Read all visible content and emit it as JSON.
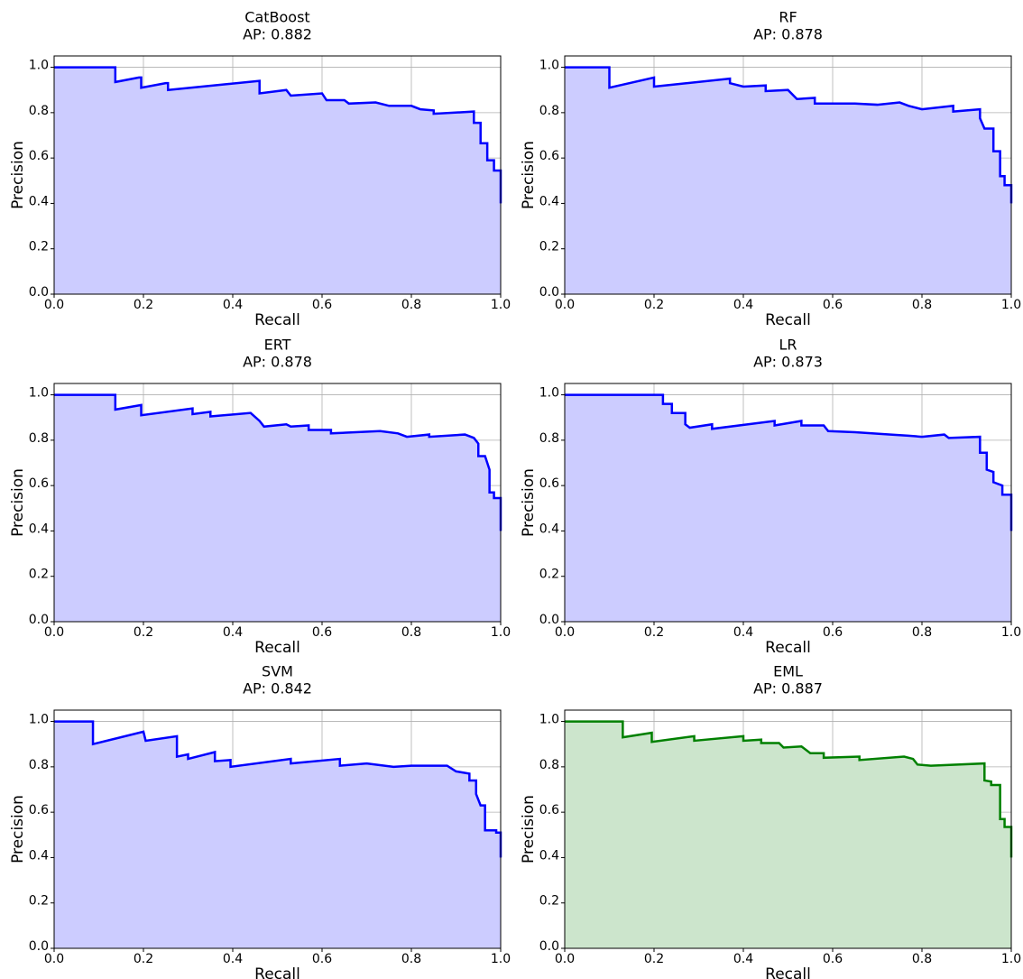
{
  "chart_data": [
    {
      "type": "line",
      "title": "CatBoost",
      "subtitle": "AP: 0.882",
      "xlabel": "Recall",
      "ylabel": "Precision",
      "color": "#0000ff",
      "fill": "#ccccff",
      "grid": true,
      "xlim": [
        0,
        1
      ],
      "ylim": [
        0,
        1.05
      ],
      "xticks": [
        {
          "value": 0,
          "label": "0.0"
        },
        0.2,
        0.4,
        0.6,
        0.8,
        {
          "value": 1,
          "label": "1.0"
        }
      ],
      "yticks": [
        {
          "value": 0,
          "label": "0.0"
        },
        0.2,
        0.4,
        0.6,
        0.8,
        {
          "value": 1,
          "label": "1.0"
        }
      ],
      "x": [
        0,
        0.137,
        0.137,
        0.19,
        0.195,
        0.195,
        0.25,
        0.255,
        0.255,
        0.46,
        0.46,
        0.52,
        0.53,
        0.6,
        0.61,
        0.65,
        0.66,
        0.72,
        0.75,
        0.8,
        0.82,
        0.85,
        0.85,
        0.94,
        0.94,
        0.955,
        0.955,
        0.97,
        0.97,
        0.985,
        0.985,
        1,
        1
      ],
      "y": [
        1,
        1,
        0.935,
        0.955,
        0.955,
        0.91,
        0.93,
        0.93,
        0.9,
        0.94,
        0.885,
        0.9,
        0.875,
        0.885,
        0.855,
        0.855,
        0.84,
        0.845,
        0.83,
        0.83,
        0.815,
        0.81,
        0.795,
        0.805,
        0.755,
        0.755,
        0.665,
        0.665,
        0.59,
        0.59,
        0.545,
        0.545,
        0.4
      ]
    },
    {
      "type": "line",
      "title": "RF",
      "subtitle": "AP: 0.878",
      "xlabel": "Recall",
      "ylabel": "Precision",
      "color": "#0000ff",
      "fill": "#ccccff",
      "grid": true,
      "xlim": [
        0,
        1
      ],
      "ylim": [
        0,
        1.05
      ],
      "xticks": [
        {
          "value": 0,
          "label": "0.0"
        },
        0.2,
        0.4,
        0.6,
        0.8,
        {
          "value": 1,
          "label": "1.0"
        }
      ],
      "yticks": [
        {
          "value": 0,
          "label": "0.0"
        },
        0.2,
        0.4,
        0.6,
        0.8,
        {
          "value": 1,
          "label": "1.0"
        }
      ],
      "x": [
        0,
        0.1,
        0.1,
        0.2,
        0.2,
        0.37,
        0.37,
        0.4,
        0.45,
        0.45,
        0.5,
        0.52,
        0.56,
        0.56,
        0.65,
        0.7,
        0.75,
        0.77,
        0.8,
        0.87,
        0.87,
        0.93,
        0.93,
        0.94,
        0.96,
        0.96,
        0.975,
        0.975,
        0.985,
        0.985,
        1,
        1
      ],
      "y": [
        1,
        1,
        0.91,
        0.955,
        0.915,
        0.95,
        0.93,
        0.915,
        0.92,
        0.895,
        0.9,
        0.86,
        0.865,
        0.84,
        0.84,
        0.835,
        0.845,
        0.83,
        0.815,
        0.83,
        0.805,
        0.815,
        0.775,
        0.73,
        0.73,
        0.63,
        0.63,
        0.52,
        0.52,
        0.48,
        0.48,
        0.4
      ]
    },
    {
      "type": "line",
      "title": "ERT",
      "subtitle": "AP: 0.878",
      "xlabel": "Recall",
      "ylabel": "Precision",
      "color": "#0000ff",
      "fill": "#ccccff",
      "grid": true,
      "xlim": [
        0,
        1
      ],
      "ylim": [
        0,
        1.05
      ],
      "xticks": [
        {
          "value": 0,
          "label": "0.0"
        },
        0.2,
        0.4,
        0.6,
        0.8,
        {
          "value": 1,
          "label": "1.0"
        }
      ],
      "yticks": [
        {
          "value": 0,
          "label": "0.0"
        },
        0.2,
        0.4,
        0.6,
        0.8,
        {
          "value": 1,
          "label": "1.0"
        }
      ],
      "x": [
        0,
        0.137,
        0.137,
        0.195,
        0.195,
        0.31,
        0.31,
        0.35,
        0.35,
        0.44,
        0.46,
        0.47,
        0.52,
        0.53,
        0.57,
        0.57,
        0.62,
        0.62,
        0.73,
        0.77,
        0.79,
        0.84,
        0.84,
        0.92,
        0.94,
        0.95,
        0.95,
        0.965,
        0.975,
        0.975,
        0.985,
        0.985,
        1,
        1
      ],
      "y": [
        1,
        1,
        0.935,
        0.955,
        0.91,
        0.94,
        0.915,
        0.925,
        0.905,
        0.92,
        0.885,
        0.86,
        0.87,
        0.86,
        0.865,
        0.845,
        0.845,
        0.83,
        0.84,
        0.83,
        0.815,
        0.825,
        0.815,
        0.825,
        0.81,
        0.785,
        0.73,
        0.73,
        0.67,
        0.57,
        0.57,
        0.545,
        0.545,
        0.4
      ]
    },
    {
      "type": "line",
      "title": "LR",
      "subtitle": "AP: 0.873",
      "xlabel": "Recall",
      "ylabel": "Precision",
      "color": "#0000ff",
      "fill": "#ccccff",
      "grid": true,
      "xlim": [
        0,
        1
      ],
      "ylim": [
        0,
        1.05
      ],
      "xticks": [
        {
          "value": 0,
          "label": "0.0"
        },
        0.2,
        0.4,
        0.6,
        0.8,
        {
          "value": 1,
          "label": "1.0"
        }
      ],
      "yticks": [
        {
          "value": 0,
          "label": "0.0"
        },
        0.2,
        0.4,
        0.6,
        0.8,
        {
          "value": 1,
          "label": "1.0"
        }
      ],
      "x": [
        0,
        0.22,
        0.22,
        0.24,
        0.24,
        0.27,
        0.27,
        0.28,
        0.33,
        0.33,
        0.47,
        0.47,
        0.53,
        0.53,
        0.58,
        0.59,
        0.65,
        0.73,
        0.77,
        0.8,
        0.85,
        0.86,
        0.93,
        0.93,
        0.945,
        0.945,
        0.96,
        0.96,
        0.98,
        0.98,
        1,
        1
      ],
      "y": [
        1,
        1,
        0.96,
        0.96,
        0.92,
        0.92,
        0.87,
        0.855,
        0.87,
        0.85,
        0.885,
        0.865,
        0.885,
        0.865,
        0.865,
        0.84,
        0.835,
        0.825,
        0.82,
        0.815,
        0.825,
        0.81,
        0.815,
        0.745,
        0.745,
        0.67,
        0.66,
        0.615,
        0.6,
        0.56,
        0.56,
        0.4
      ]
    },
    {
      "type": "line",
      "title": "SVM",
      "subtitle": "AP: 0.842",
      "xlabel": "Recall",
      "ylabel": "Precision",
      "color": "#0000ff",
      "fill": "#ccccff",
      "grid": true,
      "xlim": [
        0,
        1
      ],
      "ylim": [
        0,
        1.05
      ],
      "xticks": [
        {
          "value": 0,
          "label": "0.0"
        },
        0.2,
        0.4,
        0.6,
        0.8,
        {
          "value": 1,
          "label": "1.0"
        }
      ],
      "yticks": [
        {
          "value": 0,
          "label": "0.0"
        },
        0.2,
        0.4,
        0.6,
        0.8,
        {
          "value": 1,
          "label": "1.0"
        }
      ],
      "x": [
        0,
        0.087,
        0.087,
        0.2,
        0.205,
        0.275,
        0.275,
        0.3,
        0.3,
        0.36,
        0.36,
        0.395,
        0.395,
        0.53,
        0.53,
        0.64,
        0.64,
        0.7,
        0.76,
        0.8,
        0.88,
        0.9,
        0.93,
        0.93,
        0.945,
        0.945,
        0.955,
        0.965,
        0.965,
        0.99,
        0.99,
        1,
        1
      ],
      "y": [
        1,
        1,
        0.9,
        0.955,
        0.915,
        0.935,
        0.845,
        0.855,
        0.835,
        0.865,
        0.825,
        0.83,
        0.8,
        0.835,
        0.815,
        0.835,
        0.805,
        0.815,
        0.8,
        0.805,
        0.805,
        0.78,
        0.77,
        0.74,
        0.74,
        0.68,
        0.63,
        0.63,
        0.52,
        0.52,
        0.51,
        0.51,
        0.4
      ]
    },
    {
      "type": "line",
      "title": "EML",
      "subtitle": "AP: 0.887",
      "xlabel": "Recall",
      "ylabel": "Precision",
      "color": "#008000",
      "fill": "#cce5cc",
      "grid": true,
      "xlim": [
        0,
        1
      ],
      "ylim": [
        0,
        1.05
      ],
      "xticks": [
        {
          "value": 0,
          "label": "0.0"
        },
        0.2,
        0.4,
        0.6,
        0.8,
        {
          "value": 1,
          "label": "1.0"
        }
      ],
      "yticks": [
        {
          "value": 0,
          "label": "0.0"
        },
        0.2,
        0.4,
        0.6,
        0.8,
        {
          "value": 1,
          "label": "1.0"
        }
      ],
      "x": [
        0,
        0.13,
        0.13,
        0.195,
        0.195,
        0.29,
        0.29,
        0.4,
        0.4,
        0.44,
        0.44,
        0.48,
        0.49,
        0.53,
        0.55,
        0.58,
        0.58,
        0.66,
        0.66,
        0.76,
        0.78,
        0.79,
        0.82,
        0.94,
        0.94,
        0.955,
        0.955,
        0.975,
        0.975,
        0.985,
        0.985,
        1,
        1
      ],
      "y": [
        1,
        1,
        0.93,
        0.95,
        0.91,
        0.935,
        0.915,
        0.935,
        0.915,
        0.92,
        0.905,
        0.905,
        0.885,
        0.89,
        0.86,
        0.86,
        0.84,
        0.845,
        0.83,
        0.845,
        0.835,
        0.81,
        0.805,
        0.815,
        0.74,
        0.735,
        0.72,
        0.72,
        0.57,
        0.57,
        0.535,
        0.535,
        0.4
      ]
    }
  ]
}
